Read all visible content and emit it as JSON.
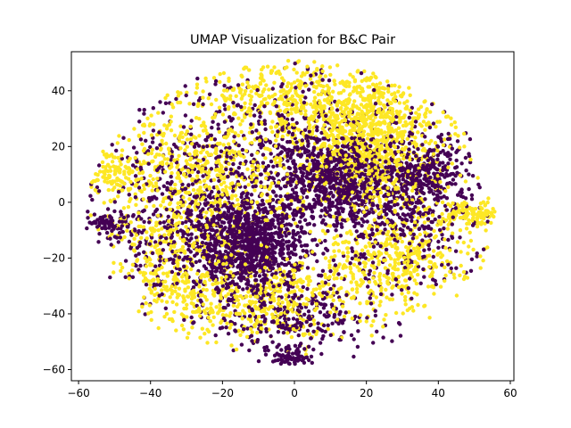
{
  "chart_data": {
    "type": "scatter",
    "title": "UMAP Visualization for B&C Pair",
    "xlabel": "",
    "ylabel": "",
    "xlim": [
      -62,
      61
    ],
    "ylim": [
      -64,
      54
    ],
    "xticks": [
      -60,
      -40,
      -20,
      0,
      20,
      40,
      60
    ],
    "yticks": [
      -60,
      -40,
      -20,
      0,
      20,
      40
    ],
    "grid": false,
    "legend": "none",
    "colors": {
      "class_0": "#440154",
      "class_1": "#fde725"
    },
    "series": [
      {
        "color": "#440154",
        "clusters": [
          {
            "center": [
              -13,
              -15
            ],
            "spread": [
              8,
              8
            ],
            "weight": 0.26
          },
          {
            "center": [
              10,
              8
            ],
            "spread": [
              9,
              8
            ],
            "weight": 0.18
          },
          {
            "center": [
              30,
              -2
            ],
            "spread": [
              10,
              14
            ],
            "weight": 0.14
          },
          {
            "center": [
              -30,
              -5
            ],
            "spread": [
              14,
              18
            ],
            "weight": 0.14
          },
          {
            "center": [
              0,
              25
            ],
            "spread": [
              18,
              12
            ],
            "weight": 0.1
          },
          {
            "center": [
              0,
              -40
            ],
            "spread": [
              12,
              8
            ],
            "weight": 0.08
          },
          {
            "center": [
              -52,
              -8
            ],
            "spread": [
              3,
              2
            ],
            "weight": 0.02
          },
          {
            "center": [
              -1,
              -56
            ],
            "spread": [
              3,
              2
            ],
            "weight": 0.02
          },
          {
            "center": [
              38,
              12
            ],
            "spread": [
              6,
              6
            ],
            "weight": 0.06
          }
        ],
        "count": 3600
      },
      {
        "color": "#fde725",
        "clusters": [
          {
            "center": [
              22,
              22
            ],
            "spread": [
              10,
              12
            ],
            "weight": 0.28
          },
          {
            "center": [
              -25,
              10
            ],
            "spread": [
              14,
              14
            ],
            "weight": 0.2
          },
          {
            "center": [
              -10,
              -35
            ],
            "spread": [
              14,
              8
            ],
            "weight": 0.14
          },
          {
            "center": [
              28,
              -20
            ],
            "spread": [
              10,
              10
            ],
            "weight": 0.12
          },
          {
            "center": [
              0,
              38
            ],
            "spread": [
              14,
              8
            ],
            "weight": 0.12
          },
          {
            "center": [
              -35,
              -20
            ],
            "spread": [
              8,
              12
            ],
            "weight": 0.08
          },
          {
            "center": [
              50,
              -4
            ],
            "spread": [
              4,
              2
            ],
            "weight": 0.03
          },
          {
            "center": [
              -50,
              10
            ],
            "spread": [
              4,
              4
            ],
            "weight": 0.03
          }
        ],
        "count": 3400
      }
    ],
    "extent": {
      "x": [
        -58,
        56
      ],
      "y": [
        -58,
        51
      ]
    }
  }
}
